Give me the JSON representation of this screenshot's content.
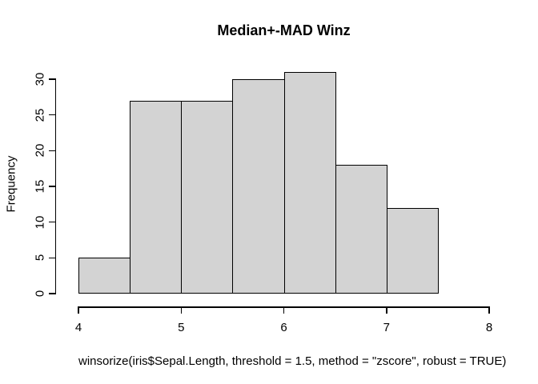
{
  "chart_data": {
    "type": "bar",
    "subtype": "histogram",
    "title": "Median+-MAD Winz",
    "xlabel": "winsorize(iris$Sepal.Length, threshold = 1.5, method = \"zscore\", robust = TRUE)",
    "ylabel": "Frequency",
    "bin_edges": [
      4.0,
      4.5,
      5.0,
      5.5,
      6.0,
      6.5,
      7.0,
      7.5
    ],
    "values": [
      5,
      27,
      27,
      30,
      31,
      18,
      12
    ],
    "x_ticks": [
      4,
      5,
      6,
      7,
      8
    ],
    "y_ticks": [
      0,
      5,
      10,
      15,
      20,
      25,
      30
    ],
    "xlim": [
      4,
      8
    ],
    "ylim": [
      0,
      30
    ],
    "grid": false,
    "legend": null,
    "bar_fill": "#d3d3d3",
    "bar_stroke": "#000000",
    "axis_color": "#000000",
    "background": "#ffffff"
  }
}
